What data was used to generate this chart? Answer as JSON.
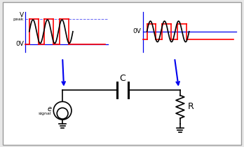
{
  "bg_color": "#e8e8e8",
  "inner_bg": "#ffffff",
  "line_color": "#000000",
  "blue_color": "#0000ee",
  "red_color": "#ff0000",
  "label_C": "C",
  "label_R": "R",
  "label_esignal": "e",
  "label_esignal_sub": "signal",
  "label_vpeak": "V",
  "label_vpeak_sub": "peak",
  "label_0v_left": "0V",
  "label_0v_right": "0V",
  "figsize": [
    3.48,
    2.09
  ],
  "dpi": 100
}
